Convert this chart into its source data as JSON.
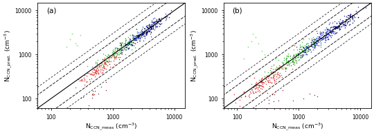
{
  "panel_labels": [
    "(a)",
    "(b)"
  ],
  "xlabel_sub": "CCN_{meas}",
  "ylabel_sub": "CCN_{pred.}",
  "unit": "cm$^{-3}$",
  "xlim": [
    60,
    15000
  ],
  "ylim": [
    60,
    15000
  ],
  "xticks": [
    100,
    1000,
    10000
  ],
  "yticks": [
    100,
    1000,
    10000
  ],
  "xticklabels": [
    "100",
    "1000",
    "10000"
  ],
  "yticklabels": [
    "100",
    "1000",
    "10000"
  ],
  "colors": {
    "red": "#dd2222",
    "green": "#22bb22",
    "blue": "#1122cc",
    "navy": "#000060",
    "dark": "#222222",
    "darkred": "#880000",
    "lightgreen": "#55ee55",
    "purple": "#8844aa"
  },
  "background": "white",
  "label_fontsize": 6.5,
  "tick_fontsize": 5.5,
  "panel_label_fontsize": 7.5
}
